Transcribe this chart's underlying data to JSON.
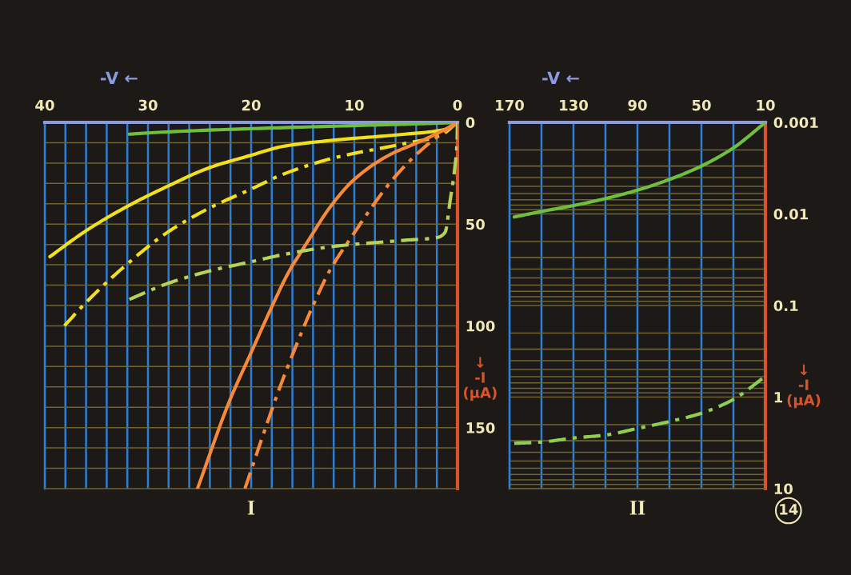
{
  "chart_data": [
    {
      "type": "line",
      "title": "I",
      "xlabel": "-V ←",
      "ylabel": "↓\n-I\n(µA)",
      "xlim": [
        40,
        0
      ],
      "ylim": [
        180,
        0
      ],
      "xticks": [
        40,
        {
          "value": 38,
          "label": null
        },
        {
          "value": 36,
          "label": null
        },
        {
          "value": 34,
          "label": null
        },
        {
          "value": 32,
          "label": null
        },
        30,
        {
          "value": 28,
          "label": null
        },
        {
          "value": 26,
          "label": null
        },
        {
          "value": 24,
          "label": null
        },
        {
          "value": 22,
          "label": null
        },
        20,
        {
          "value": 18,
          "label": null
        },
        {
          "value": 16,
          "label": null
        },
        {
          "value": 14,
          "label": null
        },
        {
          "value": 12,
          "label": null
        },
        10,
        {
          "value": 8,
          "label": null
        },
        {
          "value": 6,
          "label": null
        },
        {
          "value": 4,
          "label": null
        },
        {
          "value": 2,
          "label": null
        },
        0
      ],
      "yticks": [
        0,
        {
          "value": 10,
          "label": null
        },
        {
          "value": 20,
          "label": null
        },
        {
          "value": 30,
          "label": null
        },
        {
          "value": 40,
          "label": null
        },
        50,
        {
          "value": 60,
          "label": null
        },
        {
          "value": 70,
          "label": null
        },
        {
          "value": 80,
          "label": null
        },
        {
          "value": 90,
          "label": null
        },
        100,
        {
          "value": 110,
          "label": null
        },
        {
          "value": 120,
          "label": null
        },
        {
          "value": 130,
          "label": null
        },
        {
          "value": 140,
          "label": null
        },
        150,
        {
          "value": 160,
          "label": null
        },
        {
          "value": 170,
          "label": null
        }
      ],
      "grid": true,
      "series": [
        {
          "color": "#6fbf3f",
          "line_style": "solid",
          "x": [
            31.8,
            30,
            24.5,
            16.8,
            8,
            3,
            0
          ],
          "values": [
            5.8,
            5.2,
            3.9,
            2.6,
            1.3,
            0.6,
            0
          ]
        },
        {
          "color": "#f2e01c",
          "line_style": "solid",
          "x": [
            39.5,
            36.1,
            32.2,
            28.1,
            24,
            20.1,
            16.9,
            12.1,
            5.3,
            1.3,
            0
          ],
          "values": [
            66,
            53.6,
            41.8,
            31.4,
            22.2,
            16.3,
            11.8,
            8.8,
            5.9,
            3.6,
            0
          ]
        },
        {
          "color": "#f2e01c",
          "line_style": "dashdot",
          "x": [
            38.1,
            36.1,
            32.1,
            28.1,
            24,
            20.1,
            16.9,
            12,
            5.2,
            1.7,
            0
          ],
          "values": [
            100,
            89,
            70,
            54,
            42,
            33,
            25.5,
            17.5,
            10.5,
            6.5,
            0
          ]
        },
        {
          "color": "#f7893a",
          "line_style": "solid",
          "x": [
            25.2,
            22.1,
            19.9,
            18.3,
            16.3,
            15.2,
            14.2,
            12.4,
            10,
            6.6,
            3.9,
            1.4,
            0
          ],
          "values": [
            180,
            137,
            112,
            94,
            73,
            64,
            56,
            42,
            28,
            16,
            10,
            4,
            0
          ]
        },
        {
          "color": "#f7893a",
          "line_style": "dashdot",
          "x": [
            20.6,
            18.8,
            17.2,
            15.5,
            14,
            12.4,
            10.5,
            6.1,
            3.6,
            1.4,
            0
          ],
          "values": [
            180,
            153,
            130,
            108,
            90,
            73,
            58,
            27,
            14,
            5,
            0
          ]
        },
        {
          "color": "#b3d35a",
          "line_style": "dashdot",
          "x": [
            31.8,
            28,
            24,
            20,
            16.9,
            12.1,
            5.3,
            1.9,
            1.2,
            0.7,
            0.3,
            0.05,
            0
          ],
          "values": [
            87,
            79,
            73,
            68.5,
            65,
            61,
            58,
            56.5,
            54,
            38,
            24,
            10,
            0
          ]
        }
      ]
    },
    {
      "type": "line",
      "title": "II",
      "xlabel": "-V ←",
      "ylabel": "↓\n-I\n(µA)",
      "log": "y",
      "xlim": [
        170,
        10
      ],
      "ylim": [
        10,
        0.001
      ],
      "xticks": [
        170,
        {
          "value": 150,
          "label": null
        },
        130,
        {
          "value": 110,
          "label": null
        },
        90,
        {
          "value": 70,
          "label": null
        },
        50,
        {
          "value": 30,
          "label": null
        },
        10
      ],
      "yticks": [
        0.001,
        {
          "value": 0.002,
          "label": null
        },
        {
          "value": 0.003,
          "label": null
        },
        {
          "value": 0.004,
          "label": null
        },
        {
          "value": 0.005,
          "label": null
        },
        {
          "value": 0.006,
          "label": null
        },
        {
          "value": 0.007,
          "label": null
        },
        {
          "value": 0.008,
          "label": null
        },
        {
          "value": 0.009,
          "label": null
        },
        0.01,
        {
          "value": 0.02,
          "label": null
        },
        {
          "value": 0.03,
          "label": null
        },
        {
          "value": 0.04,
          "label": null
        },
        {
          "value": 0.05,
          "label": null
        },
        {
          "value": 0.06,
          "label": null
        },
        {
          "value": 0.07,
          "label": null
        },
        {
          "value": 0.08,
          "label": null
        },
        {
          "value": 0.09,
          "label": null
        },
        0.1,
        {
          "value": 0.2,
          "label": null
        },
        {
          "value": 0.3,
          "label": null
        },
        {
          "value": 0.4,
          "label": null
        },
        {
          "value": 0.5,
          "label": null
        },
        {
          "value": 0.6,
          "label": null
        },
        {
          "value": 0.7,
          "label": null
        },
        {
          "value": 0.8,
          "label": null
        },
        {
          "value": 0.9,
          "label": null
        },
        1,
        {
          "value": 2,
          "label": null
        },
        {
          "value": 3,
          "label": null
        },
        {
          "value": 4,
          "label": null
        },
        {
          "value": 5,
          "label": null
        },
        {
          "value": 6,
          "label": null
        },
        {
          "value": 7,
          "label": null
        },
        {
          "value": 8,
          "label": null
        },
        {
          "value": 9,
          "label": null
        },
        10
      ],
      "grid": true,
      "annotations": [
        "14"
      ],
      "series": [
        {
          "color": "#6fbf3f",
          "line_style": "solid",
          "x": [
            167,
            150,
            130,
            110,
            90,
            70,
            50,
            30,
            10
          ],
          "values": [
            0.0108,
            0.0094,
            0.0081,
            0.0068,
            0.0055,
            0.0042,
            0.003,
            0.0019,
            0.001
          ]
        },
        {
          "color": "#8fcf4f",
          "line_style": "dashdot",
          "x": [
            167,
            150,
            130,
            110,
            90,
            70,
            50,
            30,
            12
          ],
          "values": [
            3.2,
            3.1,
            2.8,
            2.6,
            2.2,
            1.85,
            1.5,
            1.06,
            0.63
          ]
        }
      ]
    }
  ]
}
